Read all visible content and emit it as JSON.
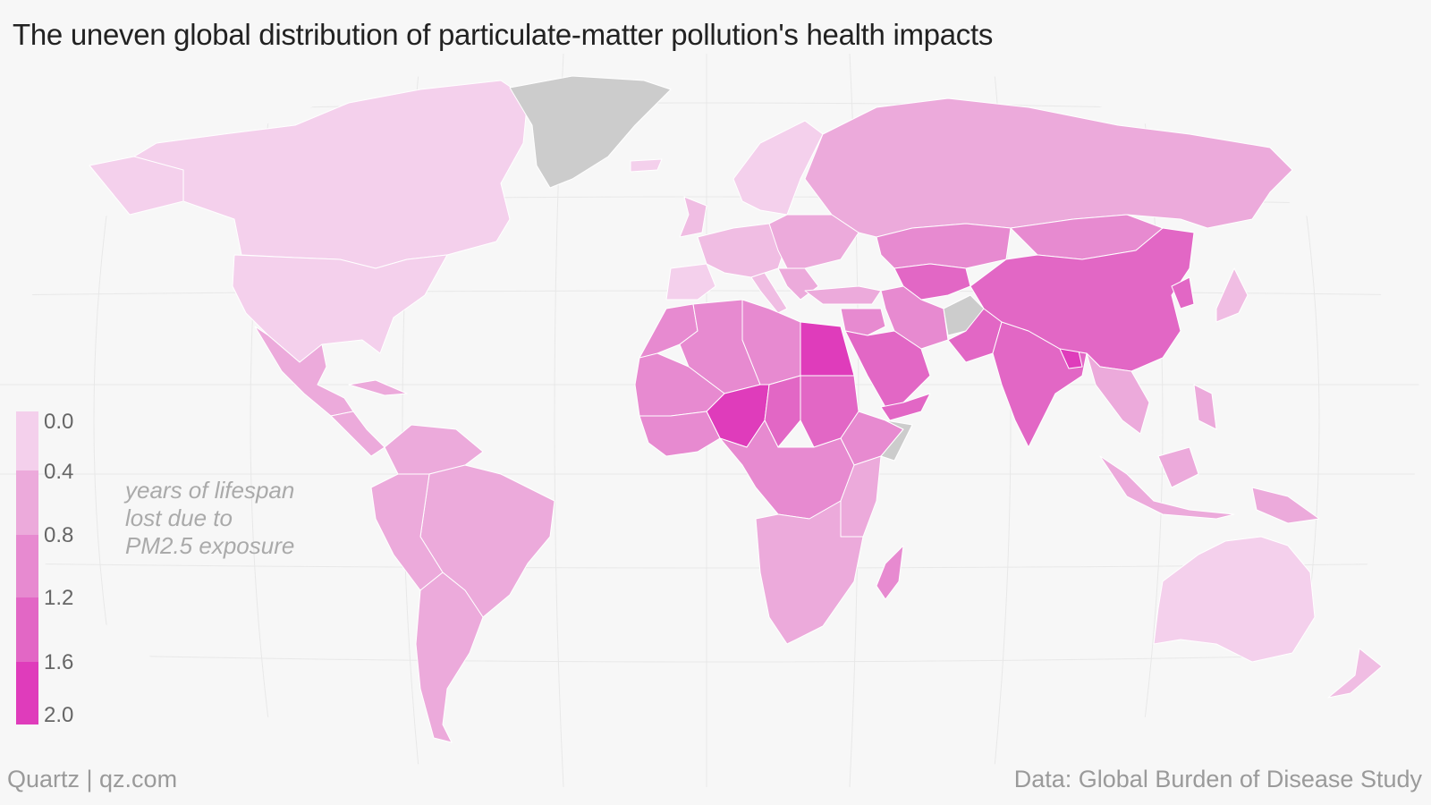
{
  "title": "The uneven global distribution of particulate-matter pollution's health impacts",
  "legend": {
    "title_lines": [
      "years of lifespan",
      "lost due to",
      "PM2.5 exposure"
    ],
    "ticks": [
      "0.0",
      "0.4",
      "0.8",
      "1.2",
      "1.6",
      "2.0"
    ],
    "colors": [
      "#f4d0ec",
      "#f0bde3",
      "#ecaadb",
      "#e78ad0",
      "#e267c5",
      "#df3cbb"
    ]
  },
  "no_data_color": "#cccccc",
  "source": "Data: Global Burden of Disease Study",
  "credit": "Quartz | qz.com"
}
